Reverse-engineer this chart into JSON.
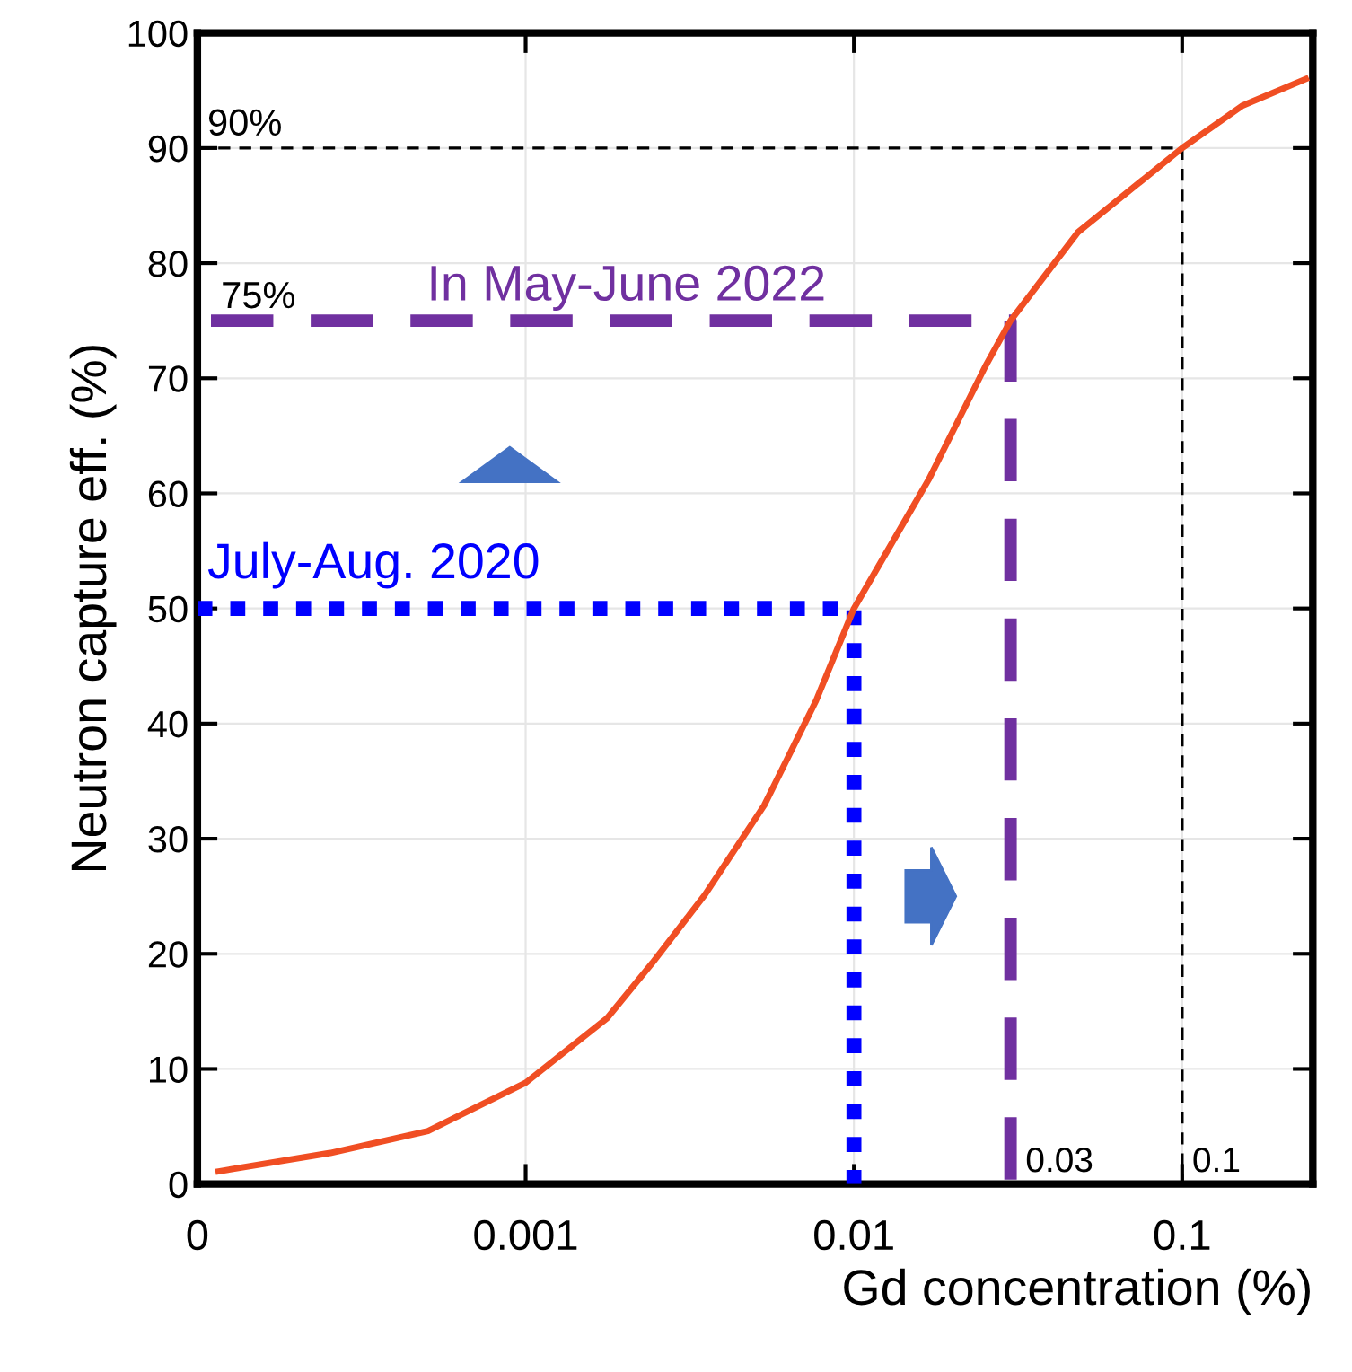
{
  "chart_data": {
    "type": "line",
    "xlabel": "Gd concentration (%)",
    "ylabel": "Neutron capture eff. (%)",
    "log": "x",
    "xlim": [
      0.0001,
      0.25
    ],
    "ylim": [
      0,
      100
    ],
    "xticks": [
      {
        "value": 0.0001,
        "label": "0"
      },
      0.001,
      0.01,
      0.1
    ],
    "yticks": [
      0,
      10,
      20,
      30,
      40,
      50,
      60,
      70,
      80,
      90,
      100
    ],
    "grid": true,
    "marker": "none",
    "series": [
      {
        "color": "#000000",
        "line_style": "dashed",
        "x": [
          0.0001,
          0.1,
          0.1
        ],
        "values": [
          90,
          90,
          0
        ]
      },
      {
        "color": "#7030a0",
        "line_style": "dashed",
        "x": [
          0.00011,
          0.03,
          0.03
        ],
        "values": [
          75,
          75,
          0
        ]
      },
      {
        "color": "#0000ff",
        "line_style": "dotted",
        "x": [
          0.0001,
          0.01,
          0.01
        ],
        "values": [
          50,
          50,
          0
        ]
      },
      {
        "color": "#f04e23",
        "line_style": "solid",
        "x": [
          0.000116,
          0.000254,
          0.000504,
          0.001,
          0.00177,
          0.00243,
          0.00351,
          0.00533,
          0.00767,
          0.01,
          0.0169,
          0.0251,
          0.03,
          0.0482,
          0.1,
          0.153,
          0.238
        ],
        "values": [
          1.1,
          2.7,
          4.6,
          8.8,
          14.4,
          19.2,
          25.1,
          32.9,
          42,
          50,
          61.2,
          71,
          75,
          82.7,
          90,
          93.7,
          96
        ]
      }
    ],
    "annotations": [
      {
        "text": "90%",
        "x": 0.0001,
        "y": 90
      },
      {
        "text": "75%",
        "x": 0.00011,
        "y": 75
      },
      {
        "text": "In May-June 2022",
        "x": 0.0005,
        "y": 75
      },
      {
        "text": "July-Aug. 2020",
        "x": 0.0001,
        "y": 50
      },
      {
        "text": "0.03",
        "x": 0.03,
        "y": 0
      },
      {
        "text": "0.1",
        "x": 0.1,
        "y": 0
      }
    ]
  }
}
